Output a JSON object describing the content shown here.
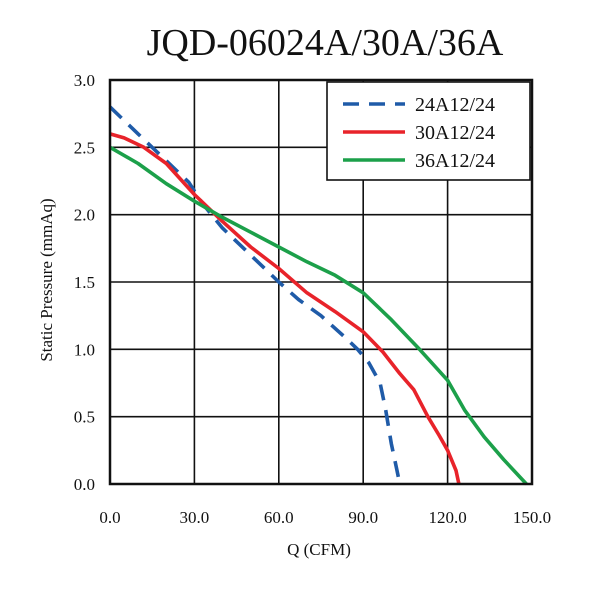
{
  "chart_data": {
    "type": "line",
    "title": "JQD-06024A/30A/36A",
    "xlabel": "Q (CFM)",
    "ylabel": "Static Pressure (mmAq)",
    "xlim": [
      0,
      150
    ],
    "ylim": [
      0,
      3
    ],
    "x_ticks": [
      "0.0",
      "30.0",
      "60.0",
      "90.0",
      "120.0",
      "150.0"
    ],
    "y_ticks": [
      "0.0",
      "0.5",
      "1.0",
      "1.5",
      "2.0",
      "2.5",
      "3.0"
    ],
    "grid": true,
    "legend_position": "top-right",
    "series": [
      {
        "name": "24A12/24",
        "color": "#1f5ba8",
        "dash": "dashed",
        "points": [
          [
            0,
            2.8
          ],
          [
            10,
            2.6
          ],
          [
            20,
            2.4
          ],
          [
            28,
            2.24
          ],
          [
            33,
            2.08
          ],
          [
            40,
            1.9
          ],
          [
            50,
            1.7
          ],
          [
            60,
            1.5
          ],
          [
            67,
            1.37
          ],
          [
            75,
            1.25
          ],
          [
            83,
            1.1
          ],
          [
            88,
            1.0
          ],
          [
            92,
            0.9
          ],
          [
            96,
            0.75
          ],
          [
            98,
            0.55
          ],
          [
            100,
            0.3
          ],
          [
            102,
            0.1
          ],
          [
            103,
            0.0
          ]
        ]
      },
      {
        "name": "30A12/24",
        "color": "#e8232a",
        "dash": "solid",
        "points": [
          [
            0,
            2.6
          ],
          [
            5,
            2.57
          ],
          [
            12,
            2.5
          ],
          [
            20,
            2.38
          ],
          [
            30,
            2.15
          ],
          [
            40,
            1.95
          ],
          [
            50,
            1.76
          ],
          [
            60,
            1.6
          ],
          [
            70,
            1.42
          ],
          [
            80,
            1.28
          ],
          [
            90,
            1.13
          ],
          [
            97,
            0.98
          ],
          [
            103,
            0.82
          ],
          [
            108,
            0.7
          ],
          [
            113,
            0.5
          ],
          [
            117,
            0.36
          ],
          [
            120,
            0.25
          ],
          [
            123,
            0.1
          ],
          [
            124,
            0.0
          ]
        ]
      },
      {
        "name": "36A12/24",
        "color": "#1ca04a",
        "dash": "solid",
        "points": [
          [
            0,
            2.5
          ],
          [
            10,
            2.38
          ],
          [
            20,
            2.23
          ],
          [
            30,
            2.1
          ],
          [
            40,
            1.98
          ],
          [
            50,
            1.87
          ],
          [
            60,
            1.76
          ],
          [
            70,
            1.65
          ],
          [
            80,
            1.55
          ],
          [
            90,
            1.42
          ],
          [
            100,
            1.22
          ],
          [
            110,
            1.0
          ],
          [
            120,
            0.77
          ],
          [
            126,
            0.55
          ],
          [
            133,
            0.35
          ],
          [
            140,
            0.18
          ],
          [
            148,
            0.0
          ]
        ]
      }
    ]
  }
}
